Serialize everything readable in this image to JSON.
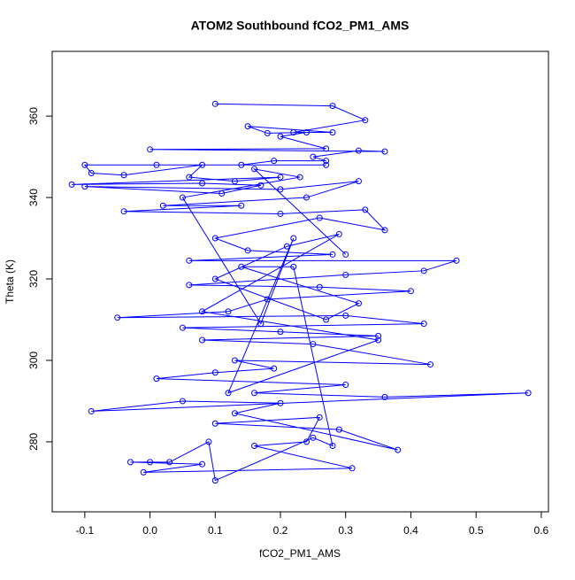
{
  "chart_data": {
    "type": "line",
    "title": "ATOM2 Southbound fCO2_PM1_AMS",
    "xlabel": "fCO2_PM1_AMS",
    "ylabel": "Theta (K)",
    "color": "#0000ff",
    "points": true,
    "x": [
      0.1,
      0.28,
      0.33,
      0.22,
      0.28,
      0.15,
      0.18,
      0.24,
      0.2,
      0.27,
      0.0,
      0.36,
      0.32,
      0.25,
      0.27,
      0.19,
      0.14,
      0.27,
      0.01,
      -0.1,
      -0.09,
      -0.04,
      0.08,
      0.06,
      0.13,
      0.2,
      -0.12,
      0.08,
      0.17,
      0.11,
      -0.1,
      0.2,
      0.32,
      0.24,
      0.02,
      0.14,
      -0.04,
      0.2,
      0.33,
      0.36,
      0.26,
      0.1,
      0.15,
      0.28,
      0.06,
      0.47,
      0.42,
      0.3,
      0.06,
      0.26,
      0.4,
      0.18,
      0.12,
      -0.05,
      0.3,
      0.42,
      0.05,
      0.2,
      0.35,
      0.08,
      0.25,
      0.43,
      0.13,
      0.19,
      0.1,
      0.01,
      0.3,
      0.16,
      0.36,
      0.58,
      -0.09,
      0.05,
      0.2,
      0.13,
      0.38,
      0.29,
      0.1,
      0.26,
      0.24,
      0.16,
      0.31,
      -0.01,
      0.08,
      -0.03,
      0.0,
      0.03,
      0.09,
      0.1,
      0.25,
      0.28,
      0.22,
      0.14,
      0.32,
      0.27,
      0.1,
      0.21,
      0.29,
      0.08,
      0.35,
      0.12,
      0.22,
      0.17,
      0.05,
      0.23,
      0.16,
      0.3
    ],
    "values": [
      363,
      362.5,
      359,
      356,
      356,
      357.5,
      355.8,
      356,
      355,
      352,
      351.8,
      351.3,
      351.5,
      350,
      349,
      349,
      348,
      348,
      348,
      348,
      346,
      345.5,
      348,
      345,
      344,
      345,
      343.2,
      343.5,
      343,
      341,
      342.7,
      342,
      344,
      340,
      338,
      338,
      336.6,
      336,
      337,
      332,
      335,
      330,
      327,
      326,
      324.5,
      324.5,
      322,
      321,
      318.5,
      318,
      317,
      315,
      312,
      310.5,
      311,
      309,
      308,
      307,
      306,
      305,
      304,
      299,
      300,
      298,
      297,
      295.5,
      294,
      292,
      291,
      292,
      287.5,
      290,
      289.5,
      287,
      278,
      283,
      284.5,
      286,
      280,
      279,
      273.5,
      272.5,
      274.5,
      275,
      275,
      275,
      280,
      270.5,
      281,
      279,
      323,
      323,
      314,
      310,
      320,
      328,
      331,
      312,
      305,
      292,
      330,
      309,
      340,
      345,
      347,
      326
    ],
    "xlim": [
      -0.15,
      0.611
    ],
    "ylim": [
      262.8,
      375.9
    ],
    "xticks": [
      -0.1,
      {
        "value": 0,
        "label": "0.0"
      },
      0.1,
      0.2,
      0.3,
      0.4,
      0.5,
      0.6
    ],
    "yticks": [
      280,
      300,
      320,
      340,
      360
    ]
  }
}
